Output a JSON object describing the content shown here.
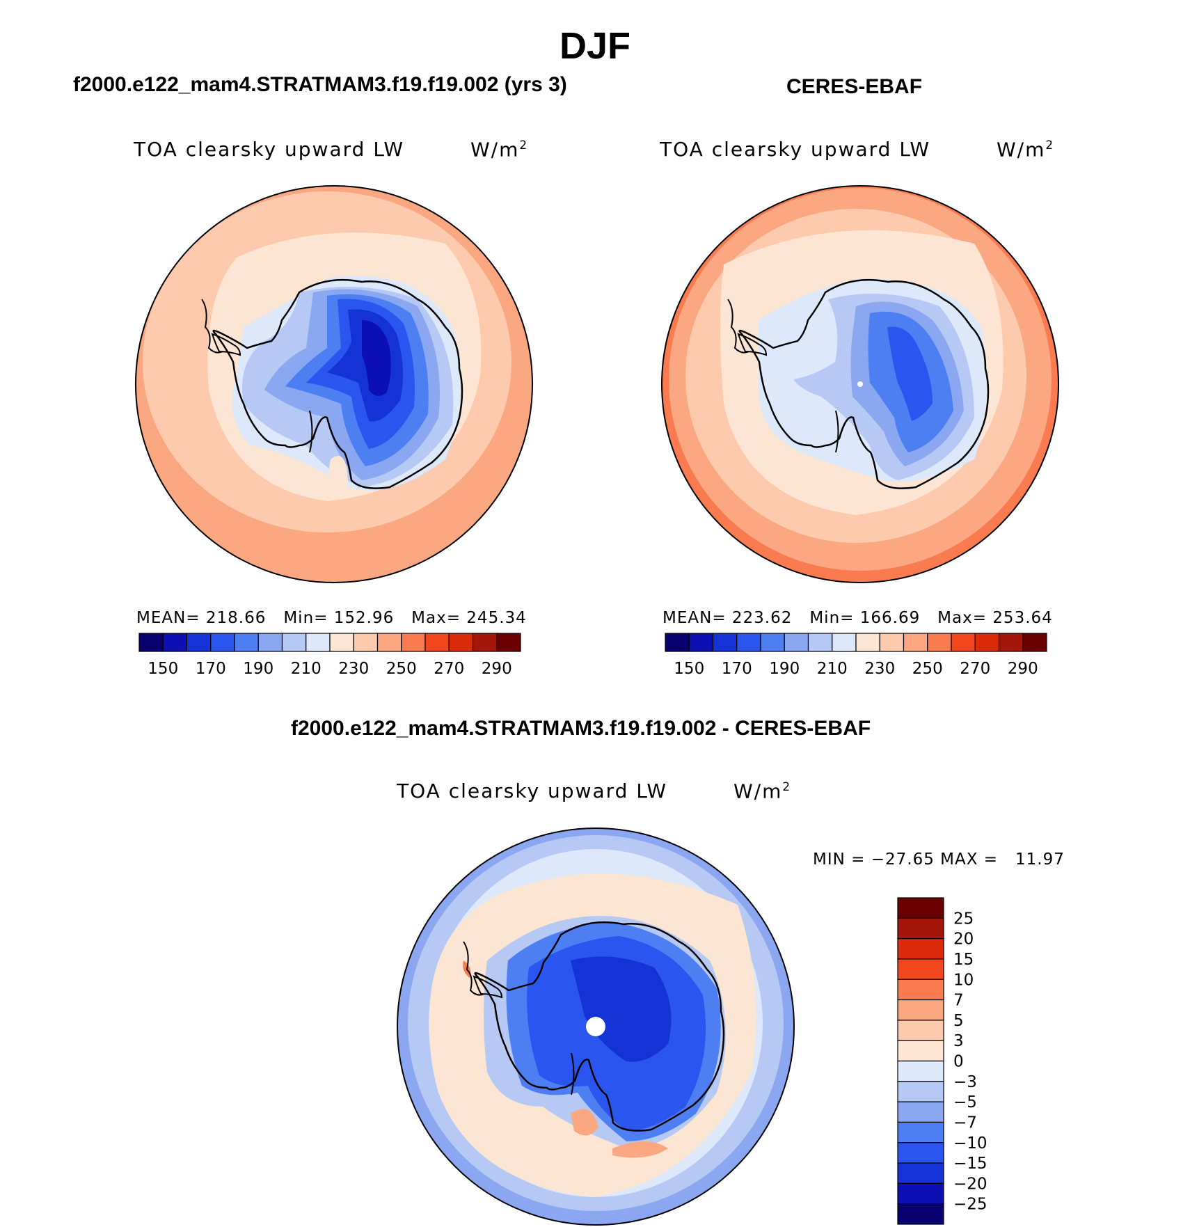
{
  "figure_title": "DJF",
  "panels": [
    {
      "case_title": "f2000.e122_mam4.STRATMAM3.f19.f19.002 (yrs 3)",
      "variable_label": "TOA clearsky upward LW",
      "units_base": "W/m",
      "units_exp": "2",
      "stats": {
        "mean_label": "MEAN=",
        "mean": "218.66",
        "min_label": "Min=",
        "min": "152.96",
        "max_label": "Max=",
        "max": "245.34"
      }
    },
    {
      "case_title": "CERES-EBAF",
      "variable_label": "TOA clearsky upward LW",
      "units_base": "W/m",
      "units_exp": "2",
      "stats": {
        "mean_label": "MEAN=",
        "mean": "223.62",
        "min_label": "Min=",
        "min": "166.69",
        "max_label": "Max=",
        "max": "253.64"
      }
    },
    {
      "case_title": "f2000.e122_mam4.STRATMAM3.f19.f19.002 - CERES-EBAF",
      "variable_label": "TOA clearsky upward LW",
      "units_base": "W/m",
      "units_exp": "2",
      "stats_text": "MIN = −27.65 MAX =   11.97"
    }
  ],
  "colors": {
    "abs_palette": [
      "#08006f",
      "#0c10b4",
      "#1532d6",
      "#2a55ee",
      "#4d7ff2",
      "#8ca7f2",
      "#b6c9f5",
      "#dde8fa",
      "#fde5d4",
      "#fdcaae",
      "#fba882",
      "#fa7b4f",
      "#f2461f",
      "#dc2b0b",
      "#a4160a",
      "#6b0000"
    ],
    "diff_palette": [
      "#08006f",
      "#0c10b4",
      "#1532d6",
      "#2a55ee",
      "#4d7ff2",
      "#8ca7f2",
      "#b6c9f5",
      "#dde8fa",
      "#fde5d4",
      "#fdcaae",
      "#fba882",
      "#fa7b4f",
      "#f2461f",
      "#dc2b0b",
      "#a4160a",
      "#6b0000"
    ],
    "land_outline": "#000000"
  },
  "chart_data": [
    {
      "type": "heatmap",
      "projection": "south polar stereographic",
      "title": "f2000.e122_mam4.STRATMAM3.f19.f19.002 (yrs 3)",
      "variable": "TOA clearsky upward LW",
      "units": "W/m2",
      "colorbar_levels": [
        150,
        160,
        170,
        180,
        190,
        200,
        210,
        220,
        230,
        240,
        250,
        260,
        270,
        280,
        290
      ],
      "colorbar_tick_labels": [
        "150",
        "170",
        "190",
        "210",
        "230",
        "250",
        "270",
        "290"
      ],
      "mean": 218.66,
      "min": 152.96,
      "max": 245.34
    },
    {
      "type": "heatmap",
      "projection": "south polar stereographic",
      "title": "CERES-EBAF",
      "variable": "TOA clearsky upward LW",
      "units": "W/m2",
      "colorbar_levels": [
        150,
        160,
        170,
        180,
        190,
        200,
        210,
        220,
        230,
        240,
        250,
        260,
        270,
        280,
        290
      ],
      "colorbar_tick_labels": [
        "150",
        "170",
        "190",
        "210",
        "230",
        "250",
        "270",
        "290"
      ],
      "mean": 223.62,
      "min": 166.69,
      "max": 253.64
    },
    {
      "type": "heatmap",
      "projection": "south polar stereographic",
      "title": "f2000.e122_mam4.STRATMAM3.f19.f19.002 - CERES-EBAF",
      "variable": "TOA clearsky upward LW",
      "units": "W/m2",
      "colorbar_levels": [
        -25,
        -20,
        -15,
        -10,
        -7,
        -5,
        -3,
        0,
        3,
        5,
        7,
        10,
        15,
        20,
        25
      ],
      "colorbar_tick_labels": [
        "25",
        "20",
        "15",
        "10",
        "7",
        "5",
        "3",
        "0",
        "−3",
        "−5",
        "−7",
        "−10",
        "−15",
        "−20",
        "−25"
      ],
      "min": -27.65,
      "max": 11.97
    }
  ]
}
